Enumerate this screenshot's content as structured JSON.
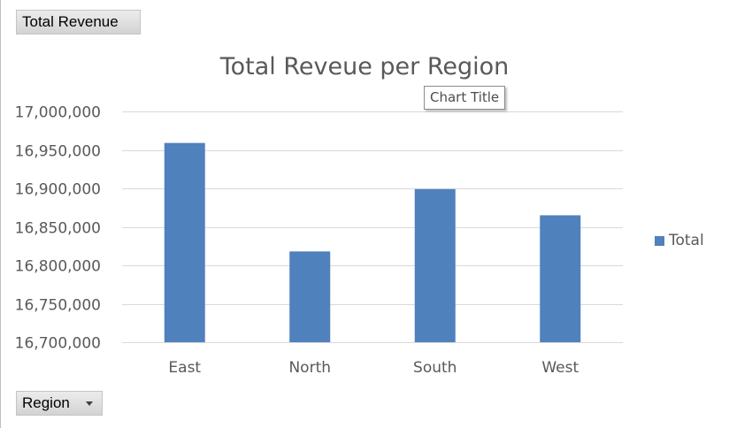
{
  "controls": {
    "value_field_label": "Total Revenue",
    "axis_field_label": "Region"
  },
  "tooltip": {
    "text": "Chart Title"
  },
  "legend": {
    "placement": "right",
    "label": "Total"
  },
  "colors": {
    "bar": "#4f81bd",
    "gridline": "#d9d9d9",
    "text": "#595959"
  },
  "chart_data": {
    "type": "bar",
    "title": "Total Reveue per Region",
    "categories": [
      "East",
      "North",
      "South",
      "West"
    ],
    "series": [
      {
        "name": "Total",
        "values": [
          16959000,
          16818000,
          16899000,
          16865000
        ]
      }
    ],
    "ylim": [
      16700000,
      17000000
    ],
    "yticks": [
      16700000,
      16750000,
      16800000,
      16850000,
      16900000,
      16950000,
      17000000
    ],
    "ytick_labels": [
      "16,700,000",
      "16,750,000",
      "16,800,000",
      "16,850,000",
      "16,900,000",
      "16,950,000",
      "17,000,000"
    ],
    "xlabel": "",
    "ylabel": "",
    "grid": true
  }
}
